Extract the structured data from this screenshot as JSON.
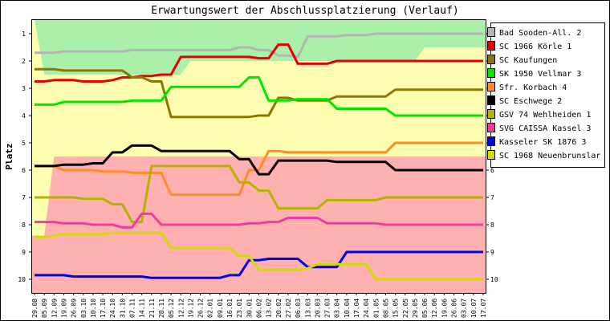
{
  "chart_data": {
    "type": "line",
    "title": "Erwartungswert der Abschlussplatzierung (Verlauf)",
    "ylabel": "Platz",
    "xlabel": "",
    "ylim": [
      10.5,
      0.5
    ],
    "y_inverted": true,
    "y_ticks": [
      "1",
      "2",
      "3",
      "4",
      "5",
      "6",
      "7",
      "8",
      "9",
      "10"
    ],
    "grid": false,
    "legend_position": "right",
    "x": [
      "29.08",
      "05.09",
      "12.09",
      "19.09",
      "26.09",
      "03.10",
      "10.10",
      "17.10",
      "24.10",
      "31.10",
      "07.11",
      "14.11",
      "21.11",
      "28.11",
      "05.12",
      "12.12",
      "19.12",
      "26.12",
      "02.01",
      "09.01",
      "16.01",
      "23.01",
      "30.01",
      "06.02",
      "13.02",
      "20.02",
      "27.02",
      "06.03",
      "13.03",
      "20.03",
      "27.03",
      "03.04",
      "10.04",
      "17.04",
      "24.04",
      "01.05",
      "08.05",
      "15.05",
      "22.05",
      "29.05",
      "05.06",
      "12.06",
      "19.06",
      "26.06",
      "03.07",
      "10.07",
      "17.07"
    ],
    "zones": [
      {
        "color": "#aaf0aa",
        "bounds": [
          0.5,
          2.5,
          2.5,
          2.5,
          2.5,
          2.5,
          2.5,
          2.5,
          2.5,
          2.5,
          2.5,
          2.5,
          2.5,
          2.5,
          2.5,
          2.5,
          2.0,
          2.0,
          2.0,
          2.0,
          2.0,
          2.0,
          2.0,
          2.0,
          2.0,
          2.0,
          2.0,
          2.0,
          2.0,
          2.0,
          2.0,
          2.0,
          2.0,
          2.0,
          2.0,
          2.0,
          2.0,
          2.0,
          2.0,
          2.0,
          1.5,
          1.5,
          1.5,
          1.5,
          1.5,
          1.5,
          1.5
        ]
      },
      {
        "color": "#fefeb0",
        "bounds": [
          8.4,
          8.4,
          5.5,
          5.5,
          5.5,
          5.5,
          5.5,
          5.5,
          5.5,
          5.5,
          5.5,
          5.5,
          5.5,
          5.5,
          5.5,
          5.5,
          5.5,
          5.5,
          5.5,
          5.5,
          5.5,
          5.5,
          5.5,
          5.5,
          5.5,
          5.5,
          5.5,
          5.5,
          5.5,
          5.5,
          5.5,
          5.5,
          5.5,
          5.5,
          5.5,
          5.5,
          5.5,
          5.5,
          5.5,
          5.5,
          5.5,
          5.5,
          5.5,
          5.5,
          5.5,
          5.5,
          5.5
        ]
      },
      {
        "color": "#ffb0b0",
        "bounds": [
          10.5,
          10.5,
          10.5,
          10.5,
          10.5,
          10.5,
          10.5,
          10.5,
          10.5,
          10.5,
          10.5,
          10.5,
          10.5,
          10.5,
          10.5,
          10.5,
          10.5,
          10.5,
          10.5,
          10.5,
          10.5,
          10.5,
          10.5,
          10.5,
          10.5,
          10.5,
          10.5,
          10.5,
          10.5,
          10.5,
          10.5,
          10.5,
          10.5,
          10.5,
          10.5,
          10.5,
          10.5,
          10.5,
          10.5,
          10.5,
          10.5,
          10.5,
          10.5,
          10.5,
          10.5,
          10.5,
          10.5
        ]
      }
    ],
    "series": [
      {
        "name": "Bad Sooden-All. 2",
        "color": "#b4b4b4",
        "values": [
          1.7,
          1.7,
          1.7,
          1.65,
          1.65,
          1.65,
          1.65,
          1.65,
          1.65,
          1.65,
          1.6,
          1.6,
          1.6,
          1.6,
          1.6,
          1.6,
          1.6,
          1.6,
          1.6,
          1.6,
          1.6,
          1.5,
          1.5,
          1.6,
          1.6,
          1.8,
          1.8,
          1.85,
          1.1,
          1.1,
          1.1,
          1.1,
          1.05,
          1.05,
          1.05,
          1.0,
          1.0,
          1.0,
          1.0,
          1.0,
          1.0,
          1.0,
          1.0,
          1.0,
          1.0,
          1.0,
          1.0
        ]
      },
      {
        "name": "SC 1966 Körle 1",
        "color": "#e60000",
        "values": [
          2.75,
          2.75,
          2.7,
          2.7,
          2.7,
          2.75,
          2.75,
          2.75,
          2.7,
          2.6,
          2.6,
          2.55,
          2.55,
          2.5,
          2.5,
          1.85,
          1.85,
          1.85,
          1.85,
          1.85,
          1.85,
          1.85,
          1.85,
          1.9,
          1.9,
          1.4,
          1.4,
          2.1,
          2.1,
          2.1,
          2.1,
          2.0,
          2.0,
          2.0,
          2.0,
          2.0,
          2.0,
          2.0,
          2.0,
          2.0,
          2.0,
          2.0,
          2.0,
          2.0,
          2.0,
          2.0,
          2.0
        ]
      },
      {
        "name": "SC Kaufungen",
        "color": "#8c7800",
        "values": [
          2.3,
          2.3,
          2.3,
          2.35,
          2.35,
          2.35,
          2.35,
          2.35,
          2.35,
          2.35,
          2.6,
          2.6,
          2.75,
          2.75,
          4.05,
          4.05,
          4.05,
          4.05,
          4.05,
          4.05,
          4.05,
          4.05,
          4.05,
          4.0,
          4.0,
          3.35,
          3.35,
          3.45,
          3.45,
          3.45,
          3.45,
          3.3,
          3.3,
          3.3,
          3.3,
          3.3,
          3.3,
          3.05,
          3.05,
          3.05,
          3.05,
          3.05,
          3.05,
          3.05,
          3.05,
          3.05,
          3.05
        ]
      },
      {
        "name": "SK 1950 Vellmar 3",
        "color": "#00e600",
        "values": [
          3.6,
          3.6,
          3.6,
          3.5,
          3.5,
          3.5,
          3.5,
          3.5,
          3.5,
          3.5,
          3.45,
          3.45,
          3.45,
          3.45,
          2.95,
          2.95,
          2.95,
          2.95,
          2.95,
          2.95,
          2.95,
          2.95,
          2.6,
          2.6,
          3.45,
          3.45,
          3.45,
          3.4,
          3.4,
          3.4,
          3.4,
          3.75,
          3.75,
          3.75,
          3.75,
          3.75,
          3.75,
          4.0,
          4.0,
          4.0,
          4.0,
          4.0,
          4.0,
          4.0,
          4.0,
          4.0,
          4.0
        ]
      },
      {
        "name": "Sfr. Korbach 4",
        "color": "#ff8c28",
        "values": [
          5.85,
          5.85,
          5.85,
          6.0,
          6.0,
          6.0,
          6.0,
          6.05,
          6.05,
          6.05,
          6.1,
          6.1,
          6.1,
          6.1,
          6.9,
          6.9,
          6.9,
          6.9,
          6.9,
          6.9,
          6.9,
          6.9,
          6.0,
          6.0,
          5.3,
          5.3,
          5.35,
          5.35,
          5.35,
          5.35,
          5.35,
          5.35,
          5.35,
          5.35,
          5.35,
          5.35,
          5.35,
          5.0,
          5.0,
          5.0,
          5.0,
          5.0,
          5.0,
          5.0,
          5.0,
          5.0,
          5.0
        ]
      },
      {
        "name": "SC Eschwege 2",
        "color": "#000000",
        "values": [
          5.85,
          5.85,
          5.85,
          5.8,
          5.8,
          5.8,
          5.75,
          5.75,
          5.35,
          5.35,
          5.1,
          5.1,
          5.1,
          5.3,
          5.3,
          5.3,
          5.3,
          5.3,
          5.3,
          5.3,
          5.3,
          5.6,
          5.6,
          6.15,
          6.15,
          5.65,
          5.65,
          5.65,
          5.65,
          5.65,
          5.65,
          5.7,
          5.7,
          5.7,
          5.7,
          5.7,
          5.7,
          6.0,
          6.0,
          6.0,
          6.0,
          6.0,
          6.0,
          6.0,
          6.0,
          6.0,
          6.0
        ]
      },
      {
        "name": "GSV 74 Wehlheiden 1",
        "color": "#b4b400",
        "values": [
          7.0,
          7.0,
          7.0,
          7.0,
          7.0,
          7.05,
          7.05,
          7.05,
          7.25,
          7.25,
          7.9,
          7.9,
          5.85,
          5.85,
          5.85,
          5.85,
          5.85,
          5.85,
          5.85,
          5.85,
          5.85,
          6.45,
          6.45,
          6.75,
          6.75,
          7.4,
          7.4,
          7.4,
          7.4,
          7.4,
          7.1,
          7.1,
          7.1,
          7.1,
          7.1,
          7.1,
          7.0,
          7.0,
          7.0,
          7.0,
          7.0,
          7.0,
          7.0,
          7.0,
          7.0,
          7.0,
          7.0
        ]
      },
      {
        "name": "SVG CAISSA Kassel 3",
        "color": "#f03ca0",
        "values": [
          7.9,
          7.9,
          7.9,
          7.95,
          7.95,
          7.95,
          8.0,
          8.0,
          8.0,
          8.1,
          8.1,
          7.6,
          7.6,
          8.0,
          8.0,
          8.0,
          8.0,
          8.0,
          8.0,
          8.0,
          8.0,
          8.0,
          7.95,
          7.95,
          7.9,
          7.9,
          7.75,
          7.75,
          7.75,
          7.75,
          7.95,
          7.95,
          7.95,
          7.95,
          7.95,
          7.95,
          8.0,
          8.0,
          8.0,
          8.0,
          8.0,
          8.0,
          8.0,
          8.0,
          8.0,
          8.0,
          8.0
        ]
      },
      {
        "name": "Kasseler SK 1876 3",
        "color": "#0000e6",
        "values": [
          9.85,
          9.85,
          9.85,
          9.85,
          9.9,
          9.9,
          9.9,
          9.9,
          9.9,
          9.9,
          9.9,
          9.9,
          9.95,
          9.95,
          9.95,
          9.95,
          9.95,
          9.95,
          9.95,
          9.95,
          9.85,
          9.85,
          9.3,
          9.3,
          9.25,
          9.25,
          9.25,
          9.25,
          9.55,
          9.55,
          9.55,
          9.55,
          9.0,
          9.0,
          9.0,
          9.0,
          9.0,
          9.0,
          9.0,
          9.0,
          9.0,
          9.0,
          9.0,
          9.0,
          9.0,
          9.0,
          9.0
        ]
      },
      {
        "name": "SC 1968 Neuenbrunslar",
        "color": "#d2dc00",
        "values": [
          8.45,
          8.45,
          8.4,
          8.35,
          8.35,
          8.35,
          8.35,
          8.35,
          8.3,
          8.3,
          8.3,
          8.3,
          8.3,
          8.3,
          8.85,
          8.85,
          8.85,
          8.85,
          8.85,
          8.85,
          8.85,
          9.15,
          9.15,
          9.65,
          9.65,
          9.65,
          9.65,
          9.65,
          9.6,
          9.45,
          9.45,
          9.45,
          9.45,
          9.45,
          9.45,
          10.0,
          10.0,
          10.0,
          10.0,
          10.0,
          10.0,
          10.0,
          10.0,
          10.0,
          10.0,
          10.0,
          10.0
        ]
      }
    ]
  }
}
